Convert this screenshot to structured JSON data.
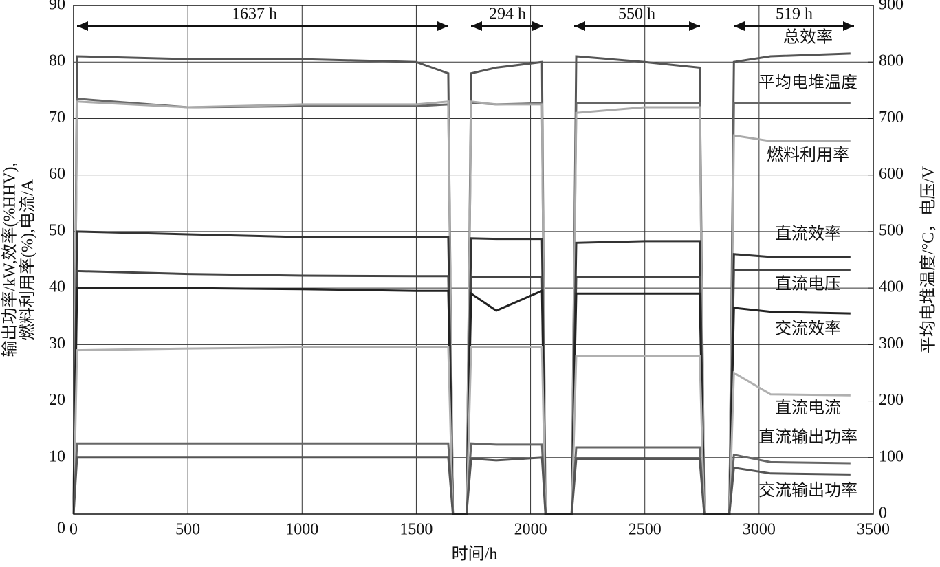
{
  "chart_data": {
    "type": "line",
    "x_label": "时间/h",
    "y_label": [
      "输出功率/kW,效率(%HHV),",
      "燃料利用率(%),电流/A"
    ],
    "y2_label": "平均电堆温度/°C，电压/V",
    "annotations": [
      "1637 h",
      "294 h",
      "550 h",
      "519 h"
    ],
    "x": [
      0,
      15,
      500,
      1000,
      1500,
      1640,
      1660,
      1720,
      1740,
      1850,
      2050,
      2065,
      2180,
      2200,
      2500,
      2740,
      2760,
      2870,
      2890,
      3050,
      3400
    ],
    "xlim": [
      0,
      3500
    ],
    "xticks": [
      0,
      500,
      1000,
      1500,
      2000,
      2500,
      3000,
      3500
    ],
    "ylim": [
      0,
      90
    ],
    "yticks": [
      0,
      10,
      20,
      30,
      40,
      50,
      60,
      70,
      80,
      90
    ],
    "y2lim": [
      0,
      900
    ],
    "y2ticks": [
      0,
      100,
      200,
      300,
      400,
      500,
      600,
      700,
      800,
      900
    ],
    "grid": true,
    "series": [
      {
        "name": "总效率",
        "color": "#555555",
        "values": [
          0,
          81,
          80.5,
          80.5,
          80,
          78,
          0,
          0,
          78,
          79,
          80,
          0,
          0,
          81,
          80,
          79,
          0,
          0,
          80,
          81,
          81.5
        ]
      },
      {
        "name": "平均电堆温度",
        "color": "#666666",
        "axis": "y2",
        "values": [
          0,
          735,
          720,
          722,
          722,
          725,
          0,
          0,
          728,
          725,
          727,
          0,
          0,
          727,
          727,
          727,
          0,
          0,
          727,
          727,
          727
        ]
      },
      {
        "name": "燃料利用率",
        "color": "#aaaaaa",
        "values": [
          0,
          73,
          72,
          72.5,
          72.5,
          73,
          0,
          0,
          73,
          72.5,
          72.5,
          0,
          0,
          71,
          72,
          72,
          0,
          0,
          67,
          66,
          66
        ]
      },
      {
        "name": "直流效率",
        "color": "#333333",
        "values": [
          0,
          50,
          49.5,
          49,
          49,
          49,
          0,
          0,
          48.8,
          48.7,
          48.7,
          0,
          0,
          48,
          48.3,
          48.3,
          0,
          0,
          46,
          45.5,
          45.5
        ]
      },
      {
        "name": "直流电压",
        "color": "#444444",
        "axis": "y2",
        "values": [
          0,
          430,
          425,
          422,
          421,
          421,
          0,
          0,
          420,
          419,
          419,
          0,
          0,
          420,
          420,
          420,
          0,
          0,
          432,
          432,
          432
        ]
      },
      {
        "name": "交流效率",
        "color": "#222222",
        "values": [
          0,
          40,
          40,
          39.8,
          39.5,
          39.5,
          0,
          0,
          39,
          36,
          39.5,
          0,
          0,
          39,
          39,
          39,
          0,
          0,
          36.5,
          35.8,
          35.5
        ]
      },
      {
        "name": "直流电流",
        "color": "#b0b0b0",
        "values": [
          0,
          29,
          29.3,
          29.5,
          29.5,
          29.5,
          0,
          0,
          29.5,
          29.5,
          29.5,
          0,
          0,
          28,
          28,
          28,
          0,
          0,
          25,
          21.2,
          21
        ]
      },
      {
        "name": "直流输出功率",
        "color": "#666666",
        "values": [
          0,
          12.5,
          12.5,
          12.5,
          12.5,
          12.5,
          0,
          0,
          12.5,
          12.3,
          12.3,
          0,
          0,
          11.8,
          11.8,
          11.8,
          0,
          0,
          10.5,
          9.2,
          9
        ]
      },
      {
        "name": "交流输出功率",
        "color": "#555555",
        "values": [
          0,
          10,
          10,
          10,
          10,
          10,
          0,
          0,
          9.8,
          9.5,
          10,
          0,
          0,
          9.8,
          9.7,
          9.7,
          0,
          0,
          8.2,
          7.2,
          7
        ]
      }
    ]
  }
}
